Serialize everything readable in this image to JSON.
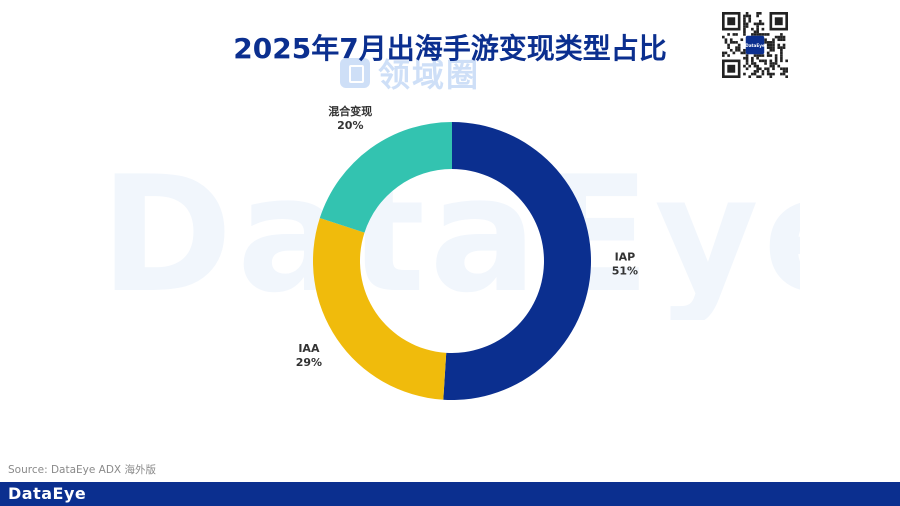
{
  "watermark_text": "DataEye",
  "title_watermark": "领域圈",
  "source": "Source: DataEye ADX 海外版",
  "footer_logo": "DataEye",
  "qr_center_text": "DataEye",
  "colors": {
    "IAP": "#0b2f8f",
    "IAA": "#f0bb0c",
    "混合变现": "#33c3b0"
  },
  "chart_data": {
    "type": "pie",
    "subtype": "donut",
    "title": "2025年7月出海手游变现类型占比",
    "start_angle_deg": 0,
    "direction": "clockwise",
    "slices": [
      {
        "label": "IAP",
        "value": 51,
        "display": "51%"
      },
      {
        "label": "IAA",
        "value": 29,
        "display": "29%"
      },
      {
        "label": "混合变现",
        "value": 20,
        "display": "20%"
      }
    ]
  }
}
